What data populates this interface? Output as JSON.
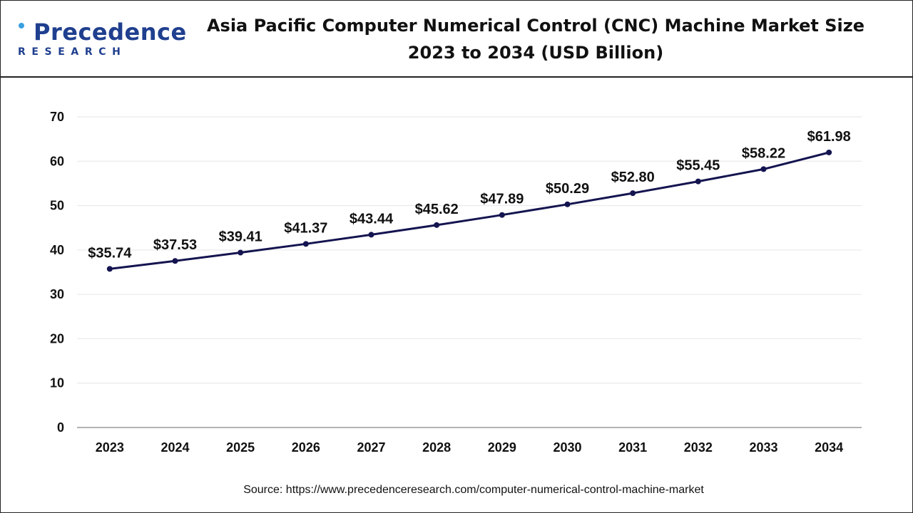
{
  "brand": {
    "logo_text": "Precedence",
    "logo_subtext": "RESEARCH"
  },
  "title_lines": [
    "Asia Pacific Computer Numerical Control (CNC) Machine Market Size",
    "2023 to 2034 (USD Billion)"
  ],
  "source": "Source: https://www.precedenceresearch.com/computer-numerical-control-machine-market",
  "colors": {
    "line": "#141450",
    "brand": "#1f3f8f",
    "grid": "#e6e6e6",
    "axis": "#9a9a9a"
  },
  "chart_data": {
    "type": "line",
    "categories": [
      "2023",
      "2024",
      "2025",
      "2026",
      "2027",
      "2028",
      "2029",
      "2030",
      "2031",
      "2032",
      "2033",
      "2034"
    ],
    "series": [
      {
        "values": [
          35.74,
          37.53,
          39.41,
          41.37,
          43.44,
          45.62,
          47.89,
          50.29,
          52.8,
          55.45,
          58.22,
          61.98
        ],
        "labels": [
          "$35.74",
          "$37.53",
          "$39.41",
          "$41.37",
          "$43.44",
          "$45.62",
          "$47.89",
          "$50.29",
          "$52.80",
          "$55.45",
          "$58.22",
          "$61.98"
        ]
      }
    ],
    "ylim": [
      0,
      70
    ],
    "yticks": [
      0,
      10,
      20,
      30,
      40,
      50,
      60,
      70
    ],
    "grid": true,
    "xlabel": "",
    "ylabel": ""
  }
}
